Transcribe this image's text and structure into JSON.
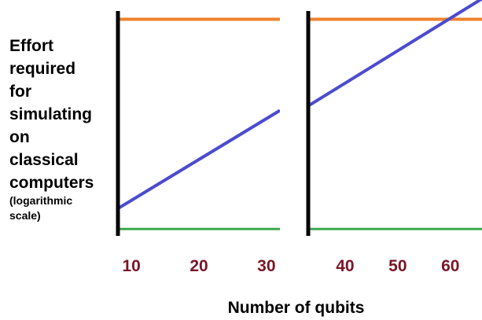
{
  "chart_data": {
    "type": "line",
    "y_label": "Effort\nrequired\nfor\nsimulating\non\nclassical\ncomputers",
    "y_label_note": "(logarithmic\nscale)",
    "x_label": "Number of qubits",
    "y_scale": "log",
    "grid": false,
    "legend": "none",
    "colors": {
      "orange": "#f0822c",
      "blue": "#4b4bd0",
      "green": "#3aa84b",
      "axis": "#000000",
      "tick_label": "#7a1626"
    },
    "panels": [
      {
        "xlim": [
          8,
          32
        ],
        "ylim": [
          0,
          100
        ],
        "x_ticks": [
          10,
          20,
          30
        ],
        "series": [
          {
            "color": "orange",
            "x": [
              8,
              32
            ],
            "y": [
              95,
              95
            ]
          },
          {
            "color": "blue",
            "x": [
              8,
              32
            ],
            "y": [
              12,
              55
            ]
          },
          {
            "color": "green",
            "x": [
              8,
              32
            ],
            "y": [
              3,
              3
            ]
          }
        ]
      },
      {
        "xlim": [
          33,
          66
        ],
        "ylim": [
          0,
          100
        ],
        "x_ticks": [
          40,
          50,
          60
        ],
        "series": [
          {
            "color": "orange",
            "x": [
              33,
              66
            ],
            "y": [
              95,
              95
            ]
          },
          {
            "color": "blue",
            "x": [
              33,
              66
            ],
            "y": [
              57,
              104
            ]
          },
          {
            "color": "green",
            "x": [
              33,
              66
            ],
            "y": [
              3,
              3
            ]
          }
        ]
      }
    ]
  }
}
